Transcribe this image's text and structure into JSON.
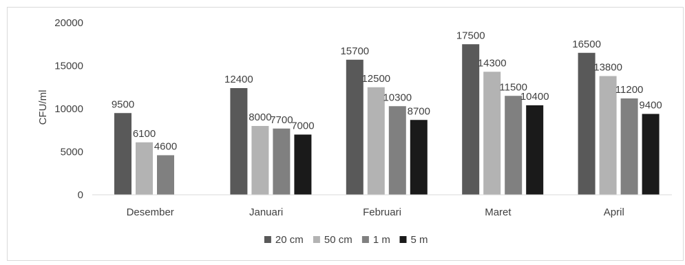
{
  "chart_data": {
    "type": "bar",
    "title": "",
    "xlabel": "",
    "ylabel": "CFU/ml",
    "ylim": [
      0,
      20000
    ],
    "yticks": [
      0,
      5000,
      10000,
      15000,
      20000
    ],
    "grid": false,
    "legend_position": "bottom",
    "categories": [
      "Desember",
      "Januari",
      "Februari",
      "Maret",
      "April"
    ],
    "series": [
      {
        "name": "20 cm",
        "color": "#595959",
        "values": [
          9500,
          12400,
          15700,
          17500,
          16500
        ]
      },
      {
        "name": "50 cm",
        "color": "#b3b3b3",
        "values": [
          6100,
          8000,
          12500,
          14300,
          13800
        ]
      },
      {
        "name": "1 m",
        "color": "#808080",
        "values": [
          4600,
          7700,
          10300,
          11500,
          11200
        ]
      },
      {
        "name": "5 m",
        "color": "#1a1a1a",
        "values": [
          null,
          7000,
          8700,
          10400,
          9400
        ]
      }
    ]
  }
}
